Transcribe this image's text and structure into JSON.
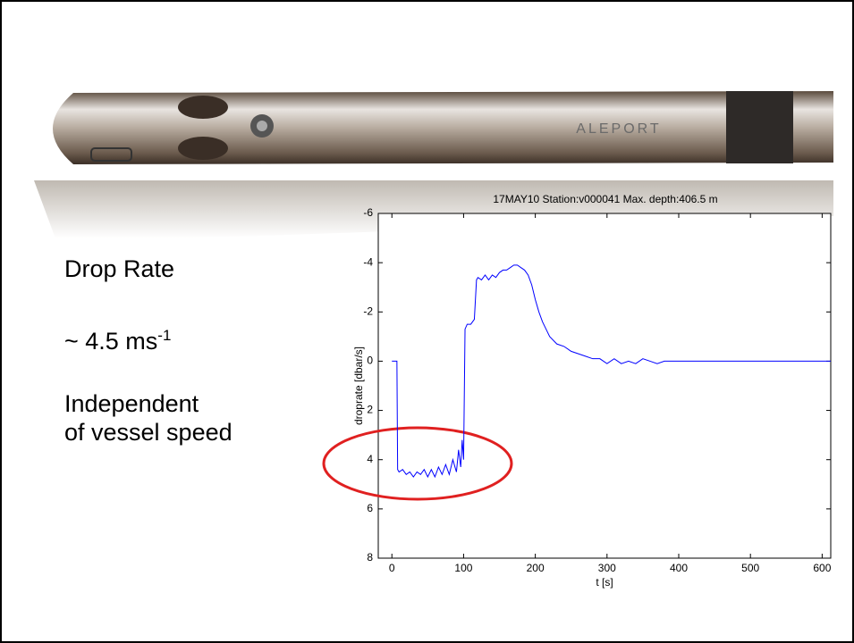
{
  "slide": {
    "logo": "ALEPORT",
    "heading": "Drop Rate",
    "rate_text": "~ 4.5 ms",
    "rate_exponent": "-1",
    "note_line1": "Independent",
    "note_line2": "of vessel speed"
  },
  "chart_data": {
    "type": "line",
    "title": "17MAY10 Station:v000041  Max. depth:406.5 m",
    "x_label": "t [s]",
    "y_label": "droprate [dbar/s]",
    "xlim": [
      -19,
      612
    ],
    "xticks": [
      0,
      100,
      200,
      300,
      400,
      500,
      600
    ],
    "ylim": [
      -6,
      8
    ],
    "yticks": [
      -6,
      -4,
      -2,
      0,
      2,
      4,
      6,
      8
    ],
    "y_inverted": true,
    "series": [
      {
        "color": "#0000ff",
        "x": [
          0,
          7,
          8,
          10,
          15,
          20,
          25,
          30,
          35,
          40,
          45,
          50,
          55,
          60,
          65,
          70,
          75,
          80,
          85,
          90,
          93,
          96,
          98,
          100,
          102,
          105,
          110,
          115,
          118,
          120,
          125,
          130,
          135,
          140,
          145,
          150,
          155,
          160,
          165,
          170,
          175,
          180,
          185,
          190,
          195,
          200,
          205,
          210,
          215,
          220,
          230,
          240,
          250,
          260,
          270,
          280,
          290,
          300,
          310,
          320,
          330,
          340,
          350,
          360,
          370,
          380,
          390,
          400,
          500,
          612
        ],
        "values": [
          0,
          0,
          4.4,
          4.5,
          4.4,
          4.6,
          4.5,
          4.7,
          4.5,
          4.6,
          4.4,
          4.7,
          4.4,
          4.7,
          4.3,
          4.6,
          4.2,
          4.6,
          4.0,
          4.5,
          3.6,
          4.3,
          3.2,
          4.0,
          -1.3,
          -1.5,
          -1.5,
          -1.7,
          -3.3,
          -3.4,
          -3.3,
          -3.5,
          -3.3,
          -3.5,
          -3.4,
          -3.6,
          -3.7,
          -3.7,
          -3.8,
          -3.9,
          -3.9,
          -3.8,
          -3.7,
          -3.5,
          -3.1,
          -2.5,
          -2.0,
          -1.6,
          -1.3,
          -1.0,
          -0.7,
          -0.6,
          -0.4,
          -0.3,
          -0.2,
          -0.1,
          -0.1,
          0.1,
          -0.1,
          0.1,
          0,
          0.1,
          -0.1,
          0,
          0.1,
          0,
          0,
          0,
          0,
          0
        ]
      }
    ]
  }
}
